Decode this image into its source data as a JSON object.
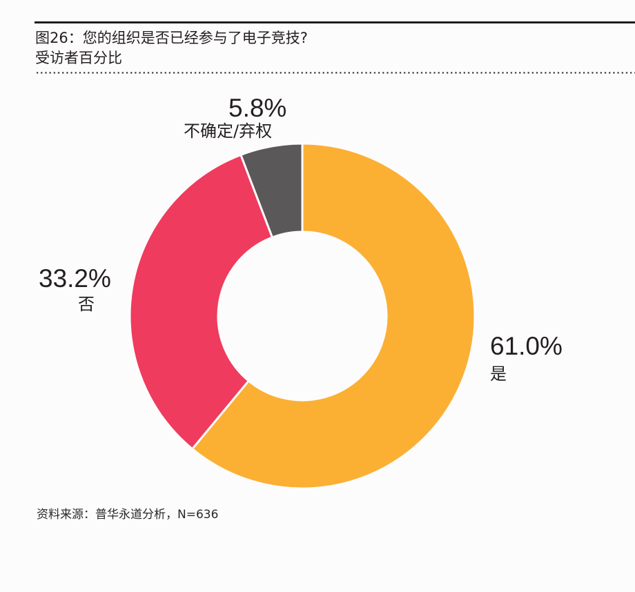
{
  "header": {
    "title": "图26：您的组织是否已经参与了电子竞技?",
    "subtitle": "受访者百分比"
  },
  "labels": {
    "unsure": {
      "pct": "5.8%",
      "cat": "不确定/弃权"
    },
    "no": {
      "pct": "33.2%",
      "cat": "否"
    },
    "yes": {
      "pct": "61.0%",
      "cat": "是"
    }
  },
  "footer": {
    "source": "资料来源：普华永道分析，N=636"
  },
  "colors": {
    "yes": "#fbb034",
    "no": "#ef3b5e",
    "unsure": "#5a5859"
  },
  "chart_data": {
    "type": "pie",
    "variant": "donut",
    "title": "图26：您的组织是否已经参与了电子竞技?",
    "subtitle": "受访者百分比",
    "categories": [
      "是",
      "否",
      "不确定/弃权"
    ],
    "values": [
      61.0,
      33.2,
      5.8
    ],
    "unit": "%",
    "colors": [
      "#fbb034",
      "#ef3b5e",
      "#5a5859"
    ],
    "start_angle": "12 o'clock, clockwise",
    "source": "资料来源：普华永道分析，N=636",
    "legend": "none (direct labels)"
  }
}
